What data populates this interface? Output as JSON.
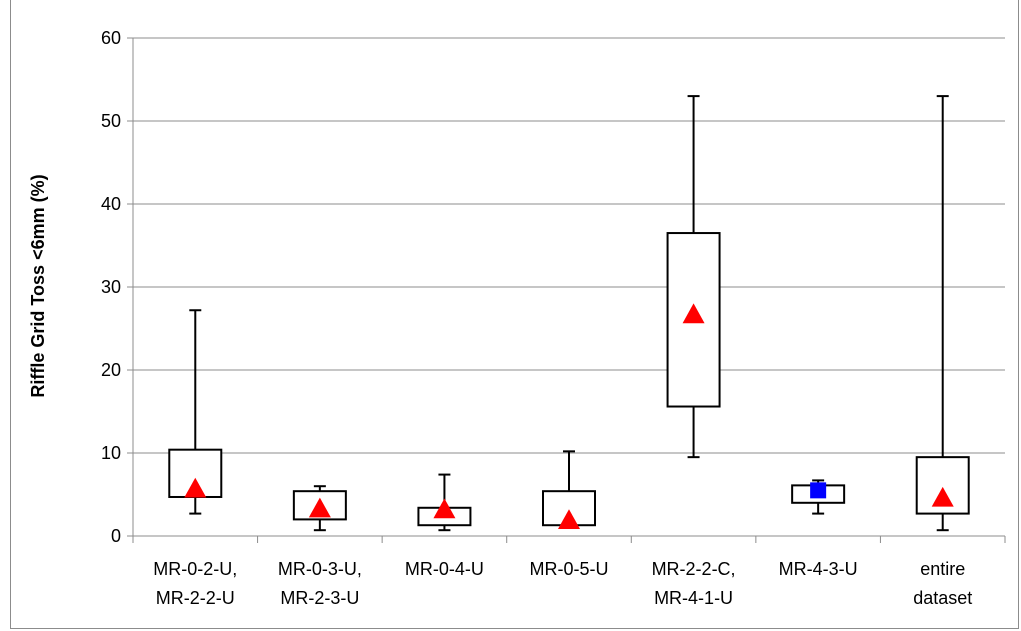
{
  "chart_data": {
    "type": "box",
    "title": "",
    "xlabel": "",
    "ylabel": "Riffle Grid Toss <6mm (%)",
    "ylim": [
      0,
      60
    ],
    "yticks": [
      0,
      10,
      20,
      30,
      40,
      50,
      60
    ],
    "grid": "horizontal",
    "categories": [
      [
        "MR-0-2-U,",
        "MR-2-2-U"
      ],
      [
        "MR-0-3-U,",
        "MR-2-3-U"
      ],
      [
        "MR-0-4-U"
      ],
      [
        "MR-0-5-U"
      ],
      [
        "MR-2-2-C,",
        "MR-4-1-U"
      ],
      [
        "MR-4-3-U"
      ],
      [
        "entire",
        "dataset"
      ]
    ],
    "boxes": [
      {
        "min": 2.7,
        "q1": 4.7,
        "q3": 10.4,
        "max": 27.2,
        "mean": 5.7,
        "marker": "triangle",
        "color": "#ff0000"
      },
      {
        "min": 0.7,
        "q1": 2.0,
        "q3": 5.4,
        "max": 6.0,
        "mean": 3.3,
        "marker": "triangle",
        "color": "#ff0000"
      },
      {
        "min": 0.7,
        "q1": 1.3,
        "q3": 3.4,
        "max": 7.4,
        "mean": 3.2,
        "marker": "triangle",
        "color": "#ff0000"
      },
      {
        "min": 1.3,
        "q1": 1.3,
        "q3": 5.4,
        "max": 10.2,
        "mean": 1.9,
        "marker": "triangle",
        "color": "#ff0000"
      },
      {
        "min": 9.5,
        "q1": 15.6,
        "q3": 36.5,
        "max": 53.0,
        "mean": 26.7,
        "marker": "triangle",
        "color": "#ff0000"
      },
      {
        "min": 2.7,
        "q1": 4.0,
        "q3": 6.1,
        "max": 6.7,
        "mean": 5.5,
        "marker": "square",
        "color": "#0000ff"
      },
      {
        "min": 0.7,
        "q1": 2.7,
        "q3": 9.5,
        "max": 53.0,
        "mean": 4.6,
        "marker": "triangle",
        "color": "#ff0000"
      }
    ]
  }
}
